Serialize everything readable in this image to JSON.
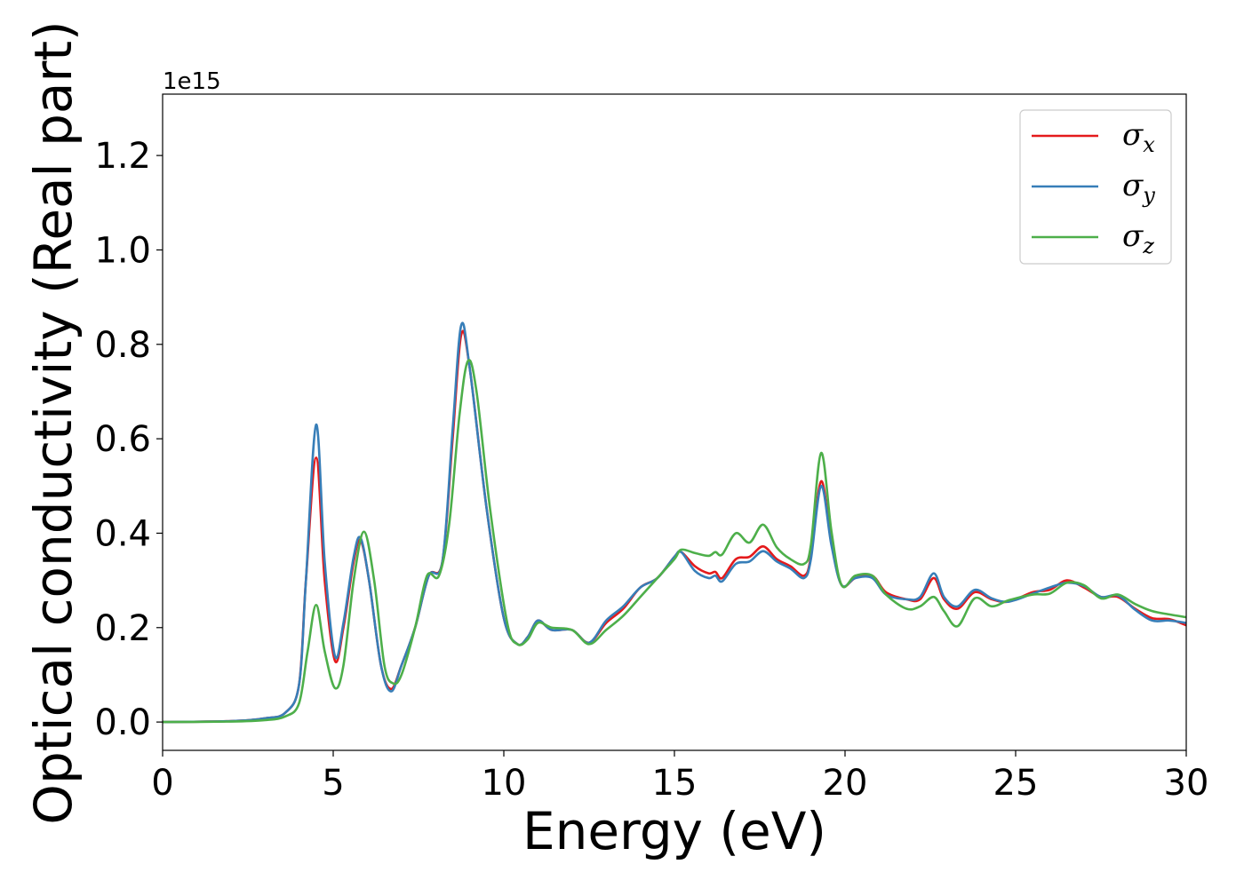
{
  "chart_data": {
    "type": "line",
    "title": "",
    "xlabel": "Energy (eV)",
    "ylabel": "Optical conductivity (Real part)",
    "y_offset_label": "1e15",
    "xlim": [
      0,
      30
    ],
    "ylim": [
      -0.06,
      1.33
    ],
    "xticks": [
      0,
      5,
      10,
      15,
      20,
      25,
      30
    ],
    "xtick_labels": [
      "0",
      "5",
      "10",
      "15",
      "20",
      "25",
      "30"
    ],
    "yticks": [
      0.0,
      0.2,
      0.4,
      0.6,
      0.8,
      1.0,
      1.2
    ],
    "ytick_labels": [
      "0.0",
      "0.2",
      "0.4",
      "0.6",
      "0.8",
      "1.0",
      "1.2"
    ],
    "grid": false,
    "legend_position": "top-right",
    "series": [
      {
        "name": "σx",
        "symbol": "σ",
        "subscript": "x",
        "color": "#e41a1c",
        "points": [
          [
            0,
            0
          ],
          [
            2,
            0.002
          ],
          [
            3,
            0.008
          ],
          [
            3.6,
            0.02
          ],
          [
            4.0,
            0.08
          ],
          [
            4.2,
            0.3
          ],
          [
            4.5,
            0.56
          ],
          [
            4.75,
            0.3
          ],
          [
            5.05,
            0.13
          ],
          [
            5.3,
            0.2
          ],
          [
            5.6,
            0.34
          ],
          [
            5.8,
            0.385
          ],
          [
            6.05,
            0.3
          ],
          [
            6.4,
            0.12
          ],
          [
            6.7,
            0.07
          ],
          [
            7.0,
            0.12
          ],
          [
            7.4,
            0.2
          ],
          [
            7.8,
            0.31
          ],
          [
            8.2,
            0.34
          ],
          [
            8.5,
            0.6
          ],
          [
            8.75,
            0.82
          ],
          [
            9.0,
            0.75
          ],
          [
            9.5,
            0.45
          ],
          [
            10.0,
            0.22
          ],
          [
            10.4,
            0.165
          ],
          [
            10.7,
            0.18
          ],
          [
            11.0,
            0.215
          ],
          [
            11.4,
            0.195
          ],
          [
            12.0,
            0.195
          ],
          [
            12.5,
            0.168
          ],
          [
            13.0,
            0.21
          ],
          [
            13.5,
            0.24
          ],
          [
            14.0,
            0.285
          ],
          [
            14.5,
            0.305
          ],
          [
            15.0,
            0.35
          ],
          [
            15.2,
            0.36
          ],
          [
            15.6,
            0.33
          ],
          [
            16.0,
            0.315
          ],
          [
            16.2,
            0.318
          ],
          [
            16.4,
            0.305
          ],
          [
            16.8,
            0.345
          ],
          [
            17.2,
            0.35
          ],
          [
            17.6,
            0.372
          ],
          [
            18.0,
            0.345
          ],
          [
            18.4,
            0.33
          ],
          [
            18.8,
            0.31
          ],
          [
            19.0,
            0.35
          ],
          [
            19.3,
            0.51
          ],
          [
            19.6,
            0.38
          ],
          [
            19.9,
            0.29
          ],
          [
            20.3,
            0.305
          ],
          [
            20.8,
            0.31
          ],
          [
            21.2,
            0.275
          ],
          [
            21.8,
            0.26
          ],
          [
            22.2,
            0.26
          ],
          [
            22.6,
            0.305
          ],
          [
            22.9,
            0.26
          ],
          [
            23.3,
            0.24
          ],
          [
            23.8,
            0.275
          ],
          [
            24.3,
            0.26
          ],
          [
            24.8,
            0.255
          ],
          [
            25.5,
            0.275
          ],
          [
            26.0,
            0.28
          ],
          [
            26.5,
            0.3
          ],
          [
            27.0,
            0.285
          ],
          [
            27.5,
            0.265
          ],
          [
            28.0,
            0.265
          ],
          [
            28.5,
            0.24
          ],
          [
            29.0,
            0.22
          ],
          [
            29.5,
            0.218
          ],
          [
            30.0,
            0.205
          ]
        ]
      },
      {
        "name": "σy",
        "symbol": "σ",
        "subscript": "y",
        "color": "#377eb8",
        "points": [
          [
            0,
            0
          ],
          [
            2,
            0.002
          ],
          [
            3,
            0.008
          ],
          [
            3.6,
            0.02
          ],
          [
            4.0,
            0.08
          ],
          [
            4.2,
            0.3
          ],
          [
            4.5,
            0.63
          ],
          [
            4.75,
            0.34
          ],
          [
            5.05,
            0.14
          ],
          [
            5.3,
            0.21
          ],
          [
            5.6,
            0.35
          ],
          [
            5.8,
            0.39
          ],
          [
            6.05,
            0.3
          ],
          [
            6.4,
            0.12
          ],
          [
            6.7,
            0.065
          ],
          [
            7.0,
            0.12
          ],
          [
            7.4,
            0.2
          ],
          [
            7.8,
            0.31
          ],
          [
            8.2,
            0.34
          ],
          [
            8.5,
            0.62
          ],
          [
            8.75,
            0.84
          ],
          [
            9.0,
            0.75
          ],
          [
            9.5,
            0.45
          ],
          [
            10.0,
            0.22
          ],
          [
            10.4,
            0.165
          ],
          [
            10.7,
            0.18
          ],
          [
            11.0,
            0.215
          ],
          [
            11.4,
            0.195
          ],
          [
            12.0,
            0.195
          ],
          [
            12.5,
            0.168
          ],
          [
            13.0,
            0.215
          ],
          [
            13.5,
            0.245
          ],
          [
            14.0,
            0.285
          ],
          [
            14.5,
            0.305
          ],
          [
            15.0,
            0.35
          ],
          [
            15.2,
            0.36
          ],
          [
            15.6,
            0.32
          ],
          [
            16.0,
            0.305
          ],
          [
            16.2,
            0.31
          ],
          [
            16.4,
            0.298
          ],
          [
            16.8,
            0.335
          ],
          [
            17.2,
            0.34
          ],
          [
            17.6,
            0.362
          ],
          [
            18.0,
            0.34
          ],
          [
            18.4,
            0.325
          ],
          [
            18.8,
            0.305
          ],
          [
            19.0,
            0.345
          ],
          [
            19.3,
            0.5
          ],
          [
            19.6,
            0.375
          ],
          [
            19.9,
            0.29
          ],
          [
            20.3,
            0.305
          ],
          [
            20.8,
            0.305
          ],
          [
            21.2,
            0.27
          ],
          [
            21.8,
            0.26
          ],
          [
            22.2,
            0.265
          ],
          [
            22.6,
            0.315
          ],
          [
            22.9,
            0.265
          ],
          [
            23.3,
            0.245
          ],
          [
            23.8,
            0.28
          ],
          [
            24.3,
            0.262
          ],
          [
            24.8,
            0.255
          ],
          [
            25.5,
            0.272
          ],
          [
            26.0,
            0.285
          ],
          [
            26.5,
            0.295
          ],
          [
            27.0,
            0.288
          ],
          [
            27.5,
            0.265
          ],
          [
            28.0,
            0.268
          ],
          [
            28.5,
            0.238
          ],
          [
            29.0,
            0.215
          ],
          [
            29.5,
            0.215
          ],
          [
            30.0,
            0.21
          ]
        ]
      },
      {
        "name": "σz",
        "symbol": "σ",
        "subscript": "z",
        "color": "#4daf4a",
        "points": [
          [
            0,
            0
          ],
          [
            2,
            0.001
          ],
          [
            3,
            0.004
          ],
          [
            3.6,
            0.012
          ],
          [
            4.0,
            0.04
          ],
          [
            4.25,
            0.15
          ],
          [
            4.5,
            0.248
          ],
          [
            4.75,
            0.15
          ],
          [
            5.05,
            0.072
          ],
          [
            5.3,
            0.12
          ],
          [
            5.6,
            0.3
          ],
          [
            5.9,
            0.403
          ],
          [
            6.2,
            0.3
          ],
          [
            6.5,
            0.12
          ],
          [
            6.75,
            0.082
          ],
          [
            7.0,
            0.1
          ],
          [
            7.4,
            0.2
          ],
          [
            7.75,
            0.31
          ],
          [
            8.1,
            0.31
          ],
          [
            8.4,
            0.42
          ],
          [
            8.7,
            0.65
          ],
          [
            8.95,
            0.765
          ],
          [
            9.2,
            0.7
          ],
          [
            9.6,
            0.45
          ],
          [
            10.1,
            0.21
          ],
          [
            10.4,
            0.165
          ],
          [
            10.7,
            0.175
          ],
          [
            11.0,
            0.21
          ],
          [
            11.4,
            0.2
          ],
          [
            12.0,
            0.195
          ],
          [
            12.5,
            0.165
          ],
          [
            13.0,
            0.195
          ],
          [
            13.5,
            0.225
          ],
          [
            14.0,
            0.265
          ],
          [
            14.5,
            0.305
          ],
          [
            15.0,
            0.345
          ],
          [
            15.2,
            0.365
          ],
          [
            15.6,
            0.358
          ],
          [
            16.0,
            0.352
          ],
          [
            16.2,
            0.36
          ],
          [
            16.4,
            0.355
          ],
          [
            16.8,
            0.4
          ],
          [
            17.2,
            0.38
          ],
          [
            17.6,
            0.418
          ],
          [
            18.0,
            0.37
          ],
          [
            18.4,
            0.345
          ],
          [
            18.8,
            0.335
          ],
          [
            19.0,
            0.375
          ],
          [
            19.3,
            0.57
          ],
          [
            19.6,
            0.405
          ],
          [
            19.9,
            0.29
          ],
          [
            20.3,
            0.31
          ],
          [
            20.8,
            0.31
          ],
          [
            21.2,
            0.27
          ],
          [
            21.8,
            0.24
          ],
          [
            22.2,
            0.245
          ],
          [
            22.6,
            0.265
          ],
          [
            22.9,
            0.235
          ],
          [
            23.3,
            0.203
          ],
          [
            23.8,
            0.262
          ],
          [
            24.3,
            0.245
          ],
          [
            24.8,
            0.258
          ],
          [
            25.5,
            0.27
          ],
          [
            26.0,
            0.272
          ],
          [
            26.5,
            0.295
          ],
          [
            27.0,
            0.29
          ],
          [
            27.5,
            0.262
          ],
          [
            28.0,
            0.27
          ],
          [
            28.5,
            0.25
          ],
          [
            29.0,
            0.235
          ],
          [
            29.5,
            0.228
          ],
          [
            30.0,
            0.222
          ]
        ]
      }
    ]
  }
}
